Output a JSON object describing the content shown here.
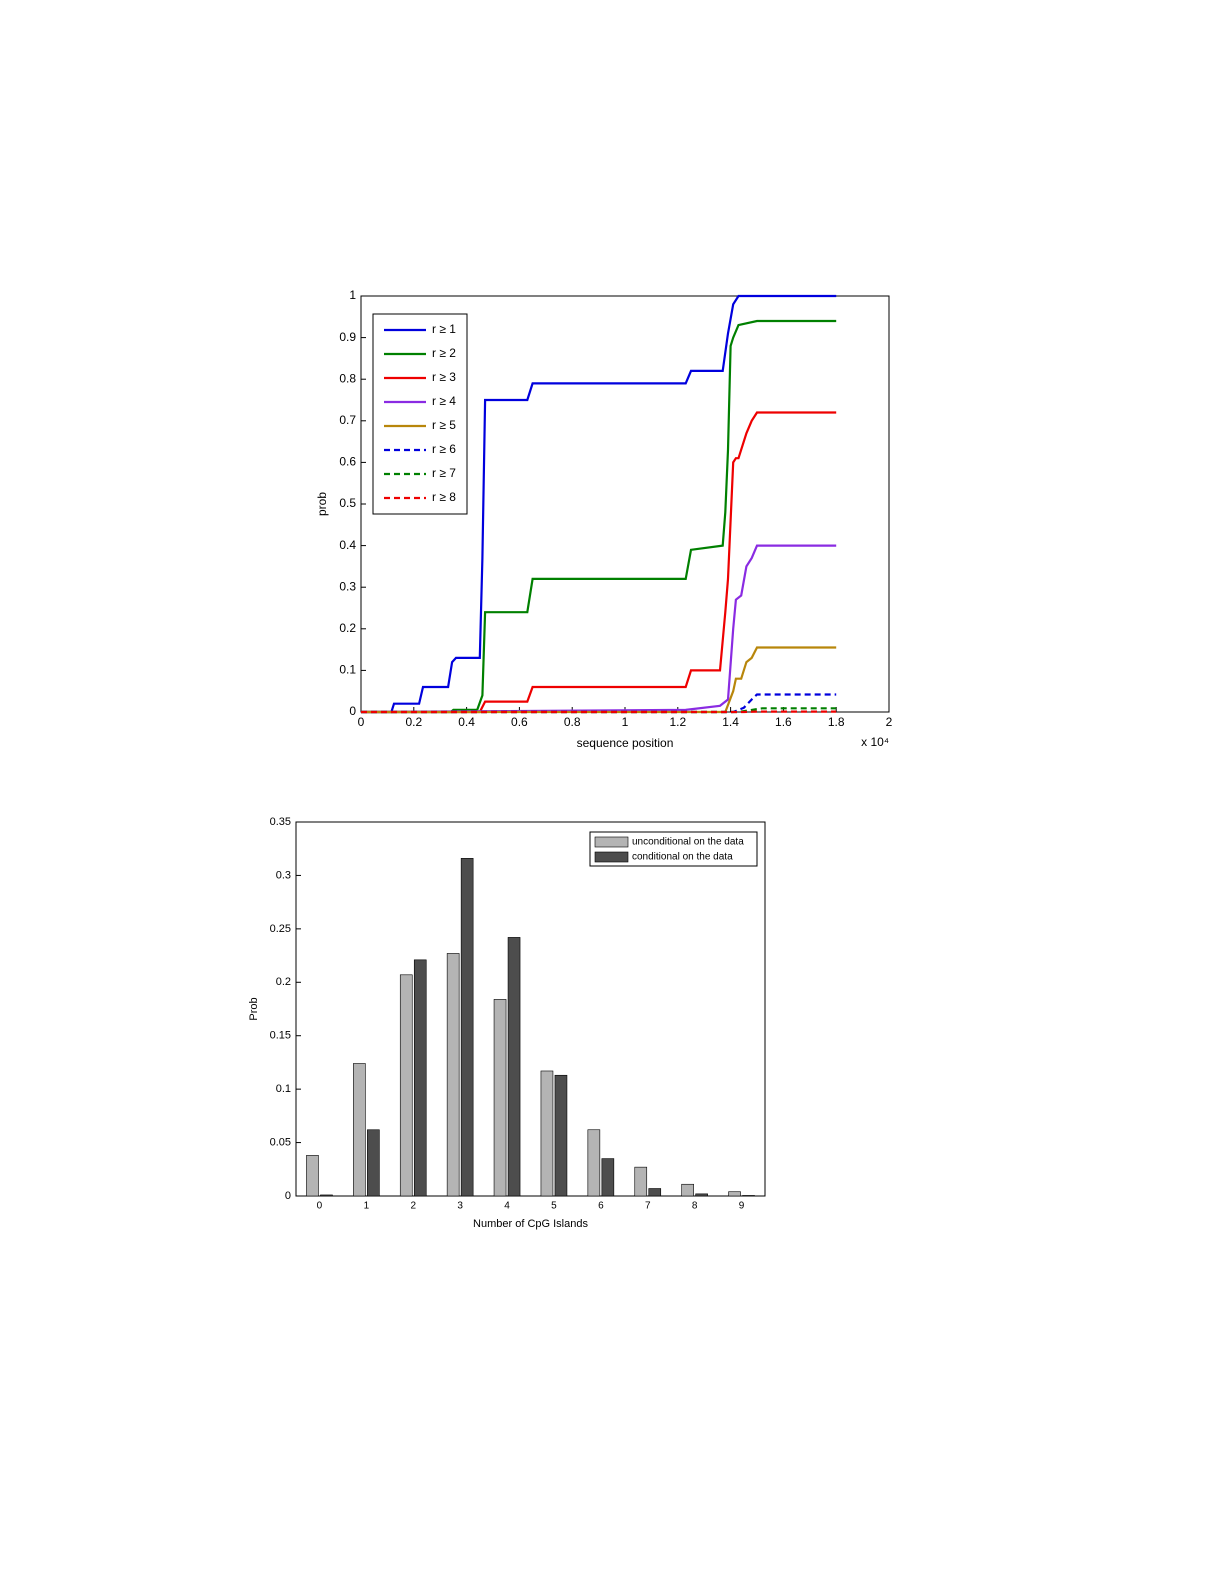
{
  "chart_data": [
    {
      "type": "line",
      "xlabel": "sequence position",
      "ylabel": "prob",
      "x_multiplier": "x 10⁴",
      "xlim": [
        0,
        20000
      ],
      "ylim": [
        0,
        1
      ],
      "xticks": [
        {
          "value": 0,
          "label": "0"
        },
        {
          "value": 2000,
          "label": "0.2"
        },
        {
          "value": 4000,
          "label": "0.4"
        },
        {
          "value": 6000,
          "label": "0.6"
        },
        {
          "value": 8000,
          "label": "0.8"
        },
        {
          "value": 10000,
          "label": "1"
        },
        {
          "value": 12000,
          "label": "1.2"
        },
        {
          "value": 14000,
          "label": "1.4"
        },
        {
          "value": 16000,
          "label": "1.6"
        },
        {
          "value": 18000,
          "label": "1.8"
        },
        {
          "value": 20000,
          "label": "2"
        }
      ],
      "yticks": [
        0,
        0.1,
        0.2,
        0.3,
        0.4,
        0.5,
        0.6,
        0.7,
        0.8,
        0.9,
        1
      ],
      "legend": "upper left",
      "series": [
        {
          "name": "r ≥ 1",
          "color": "#0000dd",
          "linestyle": "solid",
          "x": [
            0,
            1150,
            1250,
            2200,
            2350,
            3300,
            3450,
            3600,
            4500,
            4600,
            4700,
            6300,
            6500,
            12300,
            12500,
            13700,
            13900,
            14100,
            14300,
            18000
          ],
          "values": [
            0,
            0,
            0.02,
            0.02,
            0.06,
            0.06,
            0.12,
            0.13,
            0.13,
            0.37,
            0.75,
            0.75,
            0.79,
            0.79,
            0.82,
            0.82,
            0.91,
            0.98,
            1.0,
            1.0
          ]
        },
        {
          "name": "r ≥ 2",
          "color": "#008000",
          "linestyle": "solid",
          "x": [
            0,
            3400,
            3500,
            4400,
            4600,
            4700,
            6300,
            6500,
            12300,
            12500,
            13700,
            13800,
            13900,
            14000,
            14100,
            14300,
            15000,
            18000
          ],
          "values": [
            0,
            0,
            0.005,
            0.005,
            0.04,
            0.24,
            0.24,
            0.32,
            0.32,
            0.39,
            0.4,
            0.48,
            0.63,
            0.88,
            0.9,
            0.93,
            0.94,
            0.94
          ]
        },
        {
          "name": "r ≥ 3",
          "color": "#ee0000",
          "linestyle": "solid",
          "x": [
            0,
            4500,
            4700,
            6300,
            6500,
            12300,
            12500,
            13600,
            13800,
            13900,
            14100,
            14200,
            14300,
            14600,
            14800,
            15000,
            18000
          ],
          "values": [
            0,
            0,
            0.025,
            0.025,
            0.06,
            0.06,
            0.1,
            0.1,
            0.24,
            0.32,
            0.6,
            0.61,
            0.61,
            0.67,
            0.7,
            0.72,
            0.72
          ]
        },
        {
          "name": "r ≥ 4",
          "color": "#8a2be2",
          "linestyle": "solid",
          "x": [
            0,
            12300,
            13600,
            13900,
            14100,
            14200,
            14400,
            14600,
            14800,
            15000,
            18000
          ],
          "values": [
            0,
            0.005,
            0.015,
            0.03,
            0.2,
            0.27,
            0.28,
            0.35,
            0.37,
            0.4,
            0.4
          ]
        },
        {
          "name": "r ≥ 5",
          "color": "#b8860b",
          "linestyle": "solid",
          "x": [
            0,
            13800,
            14100,
            14200,
            14400,
            14600,
            14800,
            15000,
            18000
          ],
          "values": [
            0,
            0,
            0.05,
            0.08,
            0.08,
            0.12,
            0.13,
            0.155,
            0.155
          ]
        },
        {
          "name": "r ≥ 6",
          "color": "#0000dd",
          "linestyle": "dashed",
          "x": [
            0,
            14100,
            14500,
            14800,
            15000,
            18000
          ],
          "values": [
            0,
            0,
            0.01,
            0.03,
            0.042,
            0.042
          ]
        },
        {
          "name": "r ≥ 7",
          "color": "#008000",
          "linestyle": "dashed",
          "x": [
            0,
            14300,
            14800,
            15200,
            18000
          ],
          "values": [
            0,
            0,
            0.005,
            0.009,
            0.009
          ]
        },
        {
          "name": "r ≥ 8",
          "color": "#ee0000",
          "linestyle": "dashed",
          "x": [
            0,
            14500,
            15000,
            18000
          ],
          "values": [
            0,
            0,
            0.001,
            0.001
          ]
        }
      ]
    },
    {
      "type": "bar",
      "xlabel": "Number of CpG Islands",
      "ylabel": "Prob",
      "categories": [
        "0",
        "1",
        "2",
        "3",
        "4",
        "5",
        "6",
        "7",
        "8",
        "9"
      ],
      "ylim": [
        0,
        0.35
      ],
      "yticks": [
        0,
        0.05,
        0.1,
        0.15,
        0.2,
        0.25,
        0.3,
        0.35
      ],
      "legend": "upper right",
      "series": [
        {
          "name": "unconditional on the data",
          "color": "#b4b4b4",
          "values": [
            0.038,
            0.124,
            0.207,
            0.227,
            0.184,
            0.117,
            0.062,
            0.027,
            0.011,
            0.004
          ]
        },
        {
          "name": "conditional on the data",
          "color": "#4d4d4d",
          "values": [
            0.001,
            0.062,
            0.221,
            0.316,
            0.242,
            0.113,
            0.035,
            0.007,
            0.002,
            0.0005
          ]
        }
      ]
    }
  ]
}
